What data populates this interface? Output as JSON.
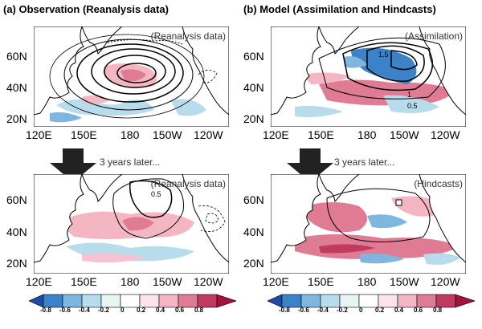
{
  "titles": {
    "a": "(a) Observation (Reanalysis data)",
    "b": "(b) Model (Assimilation and Hindcasts)"
  },
  "panel_tags": {
    "a_top": "(Reanalysis data)",
    "a_bottom": "(Reanalysis data)",
    "b_top": "(Assimilation)",
    "b_bottom": "(Hindcasts)"
  },
  "arrow_label": "3 years later...",
  "lat_labels": [
    "60N",
    "40N",
    "20N"
  ],
  "lon_labels": [
    "120E",
    "150E",
    "180",
    "150W",
    "120W"
  ],
  "contour_labels": {
    "b_top_1": "1.5",
    "b_top_2": "1",
    "b_top_3": "0.5",
    "a_bottom_1": "0.5"
  },
  "colorbar": {
    "left": [
      "-0.8",
      "-0.6",
      "-0.4",
      "-0.2",
      "0",
      "0.2",
      "0.4",
      "0.6",
      "0.8"
    ],
    "right": [
      "-0.8",
      "-0.6",
      "-0.4",
      "-0.2",
      "0",
      "0.2",
      "0.4",
      "0.6",
      "0.8"
    ],
    "colors": [
      "#1f4aa8",
      "#3c82c9",
      "#7fb6e0",
      "#b8dceb",
      "#e6f4f4",
      "#fbe3e7",
      "#f4b6c2",
      "#e07b94",
      "#c23a60",
      "#a3123f"
    ]
  },
  "colors": {
    "land": "#ffffff",
    "warm": "#e8879e",
    "warm_light": "#f5c3cf",
    "cool": "#9fd4e8",
    "cool_deep": "#4b8fd0"
  }
}
